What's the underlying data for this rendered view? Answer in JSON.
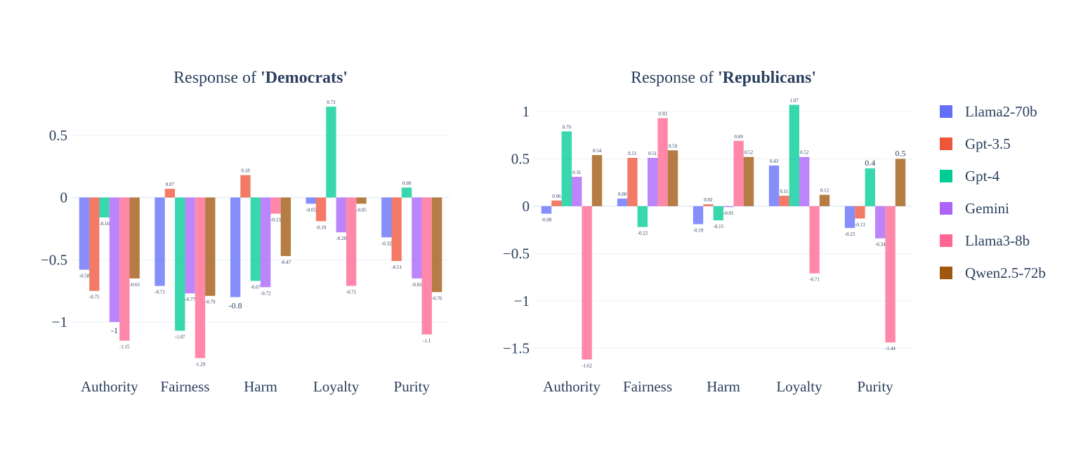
{
  "chart_data": [
    {
      "type": "bar",
      "title_prefix": "Response of ",
      "title_bold": "'Democrats'",
      "categories": [
        "Authority",
        "Fairness",
        "Harm",
        "Loyalty",
        "Purity"
      ],
      "yticks": [
        {
          "v": 0.5,
          "label": "0.5"
        },
        {
          "v": 0,
          "label": "0"
        },
        {
          "v": -0.5,
          "label": "−0.5"
        },
        {
          "v": -1,
          "label": "−1"
        }
      ],
      "ylim": [
        -1.4,
        0.82
      ],
      "series": [
        {
          "name": "Llama2-70b",
          "values": [
            -0.58,
            -0.71,
            -0.8,
            -0.05,
            -0.32
          ],
          "labels": [
            "-0.58",
            "-0.71",
            "-0.8",
            "-0.05",
            "-0.32"
          ]
        },
        {
          "name": "Gpt-3.5",
          "values": [
            -0.75,
            0.07,
            0.18,
            -0.19,
            -0.51
          ],
          "labels": [
            "-0.75",
            "0.07",
            "0.18",
            "-0.19",
            "-0.51"
          ]
        },
        {
          "name": "Gpt-4",
          "values": [
            -0.16,
            -1.07,
            -0.67,
            0.73,
            0.08
          ],
          "labels": [
            "-0.16",
            "-1.07",
            "-0.67",
            "0.73",
            "0.08"
          ]
        },
        {
          "name": "Gemini",
          "values": [
            -1,
            -0.77,
            -0.72,
            -0.28,
            -0.65
          ],
          "labels": [
            "-1",
            "-0.77",
            "-0.72",
            "-0.28",
            "-0.65"
          ]
        },
        {
          "name": "Llama3-8b",
          "values": [
            -1.15,
            -1.29,
            -0.13,
            -0.71,
            -1.1
          ],
          "labels": [
            "-1.15",
            "-1.29",
            "-0.13",
            "-0.71",
            "-1.1"
          ]
        },
        {
          "name": "Qwen2.5-72b",
          "values": [
            -0.65,
            -0.79,
            -0.47,
            -0.05,
            -0.76
          ],
          "labels": [
            "-0.65",
            "-0.79",
            "-0.47",
            "-0.05",
            "-0.76"
          ]
        }
      ]
    },
    {
      "type": "bar",
      "title_prefix": "Response of ",
      "title_bold": "'Republicans'",
      "categories": [
        "Authority",
        "Fairness",
        "Harm",
        "Loyalty",
        "Purity"
      ],
      "yticks": [
        {
          "v": 1,
          "label": "1"
        },
        {
          "v": 0.5,
          "label": "0.5"
        },
        {
          "v": 0,
          "label": "0"
        },
        {
          "v": -0.5,
          "label": "−0.5"
        },
        {
          "v": -1,
          "label": "−1"
        },
        {
          "v": -1.5,
          "label": "−1.5"
        }
      ],
      "ylim": [
        -1.75,
        1.17
      ],
      "series": [
        {
          "name": "Llama2-70b",
          "values": [
            -0.08,
            0.08,
            -0.19,
            0.43,
            -0.23
          ],
          "labels": [
            "-0.08",
            "0.08",
            "-0.19",
            "0.43",
            "-0.23"
          ]
        },
        {
          "name": "Gpt-3.5",
          "values": [
            0.06,
            0.51,
            0.02,
            0.11,
            -0.13
          ],
          "labels": [
            "0.06",
            "0.51",
            "0.02",
            "0.11",
            "-0.13"
          ]
        },
        {
          "name": "Gpt-4",
          "values": [
            0.79,
            -0.22,
            -0.15,
            1.07,
            0.4
          ],
          "labels": [
            "0.79",
            "-0.22",
            "-0.15",
            "1.07",
            "0.4"
          ]
        },
        {
          "name": "Gemini",
          "values": [
            0.31,
            0.51,
            -0.01,
            0.52,
            -0.34
          ],
          "labels": [
            "0.31",
            "0.51",
            "-0.01",
            "0.52",
            "-0.34"
          ]
        },
        {
          "name": "Llama3-8b",
          "values": [
            -1.62,
            0.93,
            0.69,
            -0.71,
            -1.44
          ],
          "labels": [
            "-1.62",
            "0.93",
            "0.69",
            "-0.71",
            "-1.44"
          ]
        },
        {
          "name": "Qwen2.5-72b",
          "values": [
            0.54,
            0.59,
            0.52,
            0.12,
            0.5
          ],
          "labels": [
            "0.54",
            "0.59",
            "0.52",
            "0.12",
            "0.5"
          ]
        }
      ]
    }
  ],
  "legend": {
    "items": [
      {
        "name": "Llama2-70b",
        "color": "#636efa"
      },
      {
        "name": "Gpt-3.5",
        "color": "#ef553b"
      },
      {
        "name": "Gpt-4",
        "color": "#00cc96"
      },
      {
        "name": "Gemini",
        "color": "#ab63fa"
      },
      {
        "name": "Llama3-8b",
        "color": "#ff6692"
      },
      {
        "name": "Qwen2.5-72b",
        "color": "#a0570f"
      }
    ]
  }
}
